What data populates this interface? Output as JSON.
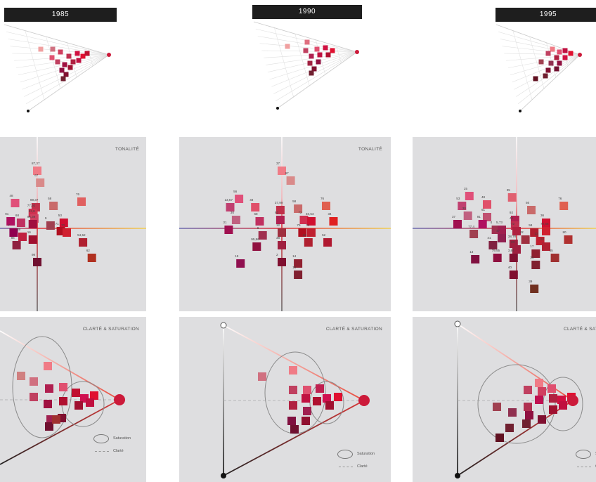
{
  "years": [
    "1985",
    "1990",
    "1995"
  ],
  "labels": {
    "tonalite": "TONALITÉ",
    "clarte_saturation": "CLARTÉ & SATURATION",
    "legend_saturation": "Saturation",
    "legend_clarte": "Clarté"
  },
  "colors": {
    "panel_bg": "#dedee0",
    "hue_axis_red": "#e0303a",
    "hue_axis_yellow": "#f2d050",
    "hue_axis_blue": "#6a6ab0",
    "target_dot": "#cc1a3a"
  },
  "chart_data": [
    {
      "type": "scatter",
      "title": "1985",
      "tonalite": [
        {
          "label": "87,37",
          "x": 0,
          "y": 82,
          "color": "#f07b86"
        },
        {
          "label": "67",
          "x": 4,
          "y": 65,
          "color": "#d98a8a"
        },
        {
          "label": "48",
          "x": -30,
          "y": 36,
          "color": "#e0507a"
        },
        {
          "label": "99,37",
          "x": -2,
          "y": 30,
          "color": "#c0304a"
        },
        {
          "label": "58",
          "x": 22,
          "y": 32,
          "color": "#c96a6a"
        },
        {
          "label": "76",
          "x": 60,
          "y": 38,
          "color": "#e06060"
        },
        {
          "label": "77,92",
          "x": -6,
          "y": 22,
          "color": "#d03050"
        },
        {
          "label": "83,8",
          "x": -4,
          "y": 14,
          "color": "#d04060"
        },
        {
          "label": "91",
          "x": -36,
          "y": 10,
          "color": "#b01060"
        },
        {
          "label": "68",
          "x": -22,
          "y": 8,
          "color": "#c03060"
        },
        {
          "label": "95,39",
          "x": -6,
          "y": 6,
          "color": "#a01040"
        },
        {
          "label": "9",
          "x": 18,
          "y": 4,
          "color": "#a04050"
        },
        {
          "label": "53",
          "x": 36,
          "y": 8,
          "color": "#d01030"
        },
        {
          "label": "71",
          "x": 32,
          "y": -4,
          "color": "#b01020"
        },
        {
          "label": "70",
          "x": 40,
          "y": -6,
          "color": "#d02030"
        },
        {
          "label": "7",
          "x": -32,
          "y": -6,
          "color": "#900050"
        },
        {
          "label": "59",
          "x": -20,
          "y": -12,
          "color": "#c02040"
        },
        {
          "label": "16",
          "x": -6,
          "y": -16,
          "color": "#a01030"
        },
        {
          "label": "86",
          "x": -28,
          "y": -24,
          "color": "#902040"
        },
        {
          "label": "54,52",
          "x": 62,
          "y": -20,
          "color": "#b02030"
        },
        {
          "label": "62",
          "x": 74,
          "y": -42,
          "color": "#b03020"
        },
        {
          "label": "98",
          "x": 0,
          "y": -48,
          "color": "#701030"
        }
      ]
    },
    {
      "type": "scatter",
      "title": "1990",
      "tonalite": [
        {
          "label": "37",
          "x": 0,
          "y": 82,
          "color": "#f07b86"
        },
        {
          "label": "67",
          "x": 12,
          "y": 68,
          "color": "#d98a8a"
        },
        {
          "label": "56",
          "x": -58,
          "y": 42,
          "color": "#e0507a"
        },
        {
          "label": "48",
          "x": -36,
          "y": 30,
          "color": "#e0506a"
        },
        {
          "label": "37,99",
          "x": -2,
          "y": 26,
          "color": "#c0304a"
        },
        {
          "label": "13,57",
          "x": -70,
          "y": 30,
          "color": "#c04070"
        },
        {
          "label": "58",
          "x": 22,
          "y": 28,
          "color": "#c96a6a"
        },
        {
          "label": "76",
          "x": 60,
          "y": 32,
          "color": "#e06050"
        },
        {
          "label": "30",
          "x": -62,
          "y": 12,
          "color": "#c06080"
        },
        {
          "label": "68",
          "x": -30,
          "y": 10,
          "color": "#c03060"
        },
        {
          "label": "92",
          "x": -2,
          "y": 12,
          "color": "#b02050"
        },
        {
          "label": "72",
          "x": 30,
          "y": 12,
          "color": "#d03050"
        },
        {
          "label": "40,53",
          "x": 40,
          "y": 10,
          "color": "#d01030"
        },
        {
          "label": "34",
          "x": 70,
          "y": 10,
          "color": "#e02020"
        },
        {
          "label": "31",
          "x": -72,
          "y": -2,
          "color": "#a01050"
        },
        {
          "label": "75",
          "x": 28,
          "y": -6,
          "color": "#b01020"
        },
        {
          "label": "70",
          "x": 40,
          "y": -6,
          "color": "#c02030"
        },
        {
          "label": "8",
          "x": -26,
          "y": -10,
          "color": "#a03050"
        },
        {
          "label": "12",
          "x": 0,
          "y": -6,
          "color": "#a03040"
        },
        {
          "label": "22",
          "x": 36,
          "y": -20,
          "color": "#b02030"
        },
        {
          "label": "52",
          "x": 62,
          "y": -20,
          "color": "#b01830"
        },
        {
          "label": "95,86",
          "x": -34,
          "y": -26,
          "color": "#901040"
        },
        {
          "label": "38",
          "x": 0,
          "y": -24,
          "color": "#a02040"
        },
        {
          "label": "19",
          "x": -56,
          "y": -50,
          "color": "#901050"
        },
        {
          "label": "2",
          "x": 0,
          "y": -48,
          "color": "#801030"
        },
        {
          "label": "14",
          "x": 22,
          "y": -50,
          "color": "#902030"
        },
        {
          "label": "16",
          "x": 22,
          "y": -66,
          "color": "#802030"
        }
      ]
    },
    {
      "type": "scatter",
      "title": "1995",
      "tonalite": [
        {
          "label": "35",
          "x": -6,
          "y": 44,
          "color": "#e06070"
        },
        {
          "label": "76",
          "x": 64,
          "y": 32,
          "color": "#e06050"
        },
        {
          "label": "15",
          "x": -64,
          "y": 46,
          "color": "#e0507a"
        },
        {
          "label": "48",
          "x": -40,
          "y": 34,
          "color": "#e0506a"
        },
        {
          "label": "56",
          "x": 20,
          "y": 26,
          "color": "#c96a6a"
        },
        {
          "label": "53",
          "x": -74,
          "y": 32,
          "color": "#c04070"
        },
        {
          "label": "30",
          "x": -66,
          "y": 18,
          "color": "#c06080"
        },
        {
          "label": "61",
          "x": -40,
          "y": 16,
          "color": "#c05070"
        },
        {
          "label": "37",
          "x": -80,
          "y": 6,
          "color": "#a01050"
        },
        {
          "label": "91",
          "x": -46,
          "y": 6,
          "color": "#b01060"
        },
        {
          "label": "92",
          "x": -2,
          "y": 12,
          "color": "#b02050"
        },
        {
          "label": "44",
          "x": -2,
          "y": 4,
          "color": "#c03050"
        },
        {
          "label": "36",
          "x": 40,
          "y": 8,
          "color": "#d01030"
        },
        {
          "label": "70,66",
          "x": 40,
          "y": -4,
          "color": "#d02030"
        },
        {
          "label": "77,4",
          "x": -58,
          "y": -8,
          "color": "#a04050"
        },
        {
          "label": "4",
          "x": -28,
          "y": -2,
          "color": "#a03050"
        },
        {
          "label": "5,73",
          "x": -20,
          "y": -2,
          "color": "#a02050"
        },
        {
          "label": "72",
          "x": 0,
          "y": -4,
          "color": "#b02040"
        },
        {
          "label": "58",
          "x": 24,
          "y": -6,
          "color": "#b02030"
        },
        {
          "label": "80",
          "x": 70,
          "y": -16,
          "color": "#b03030"
        },
        {
          "label": "47",
          "x": -20,
          "y": -14,
          "color": "#902050"
        },
        {
          "label": "42",
          "x": 12,
          "y": -16,
          "color": "#a03040"
        },
        {
          "label": "33",
          "x": 32,
          "y": -18,
          "color": "#c02030"
        },
        {
          "label": "41",
          "x": -32,
          "y": -24,
          "color": "#802040"
        },
        {
          "label": "38,78",
          "x": -4,
          "y": -22,
          "color": "#a02040"
        },
        {
          "label": "23",
          "x": 0,
          "y": -30,
          "color": "#a02040"
        },
        {
          "label": "62",
          "x": 40,
          "y": -26,
          "color": "#b02030"
        },
        {
          "label": "13",
          "x": -56,
          "y": -44,
          "color": "#801040"
        },
        {
          "label": "79,55",
          "x": -26,
          "y": -42,
          "color": "#901040"
        },
        {
          "label": "3,64",
          "x": -4,
          "y": -42,
          "color": "#801030"
        },
        {
          "label": "17",
          "x": 26,
          "y": -36,
          "color": "#902030"
        },
        {
          "label": "45",
          "x": 52,
          "y": -42,
          "color": "#a03030"
        },
        {
          "label": "36",
          "x": 26,
          "y": -52,
          "color": "#802030"
        },
        {
          "label": "40",
          "x": -4,
          "y": -66,
          "color": "#801030"
        },
        {
          "label": "39",
          "x": 24,
          "y": -86,
          "color": "#703020"
        }
      ]
    }
  ]
}
